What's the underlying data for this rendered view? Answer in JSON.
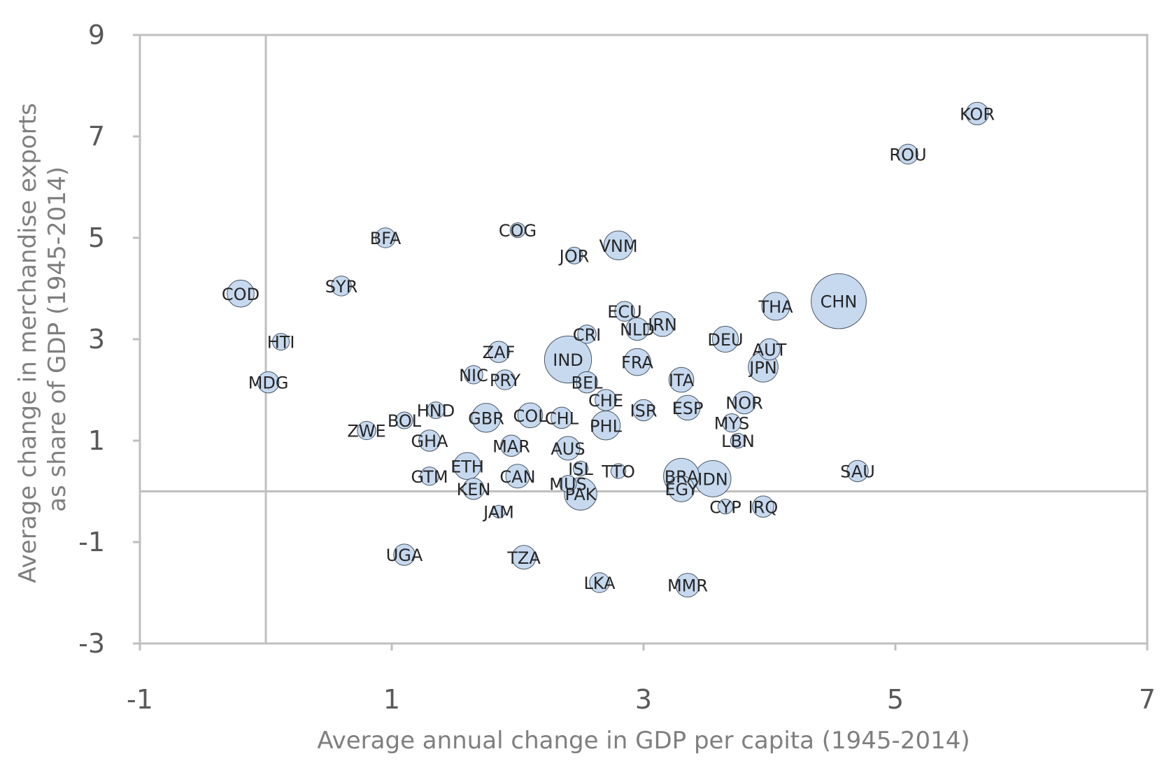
{
  "chart_data": {
    "type": "scatter",
    "bubble": true,
    "xlabel": "Average annual change in GDP per capita (1945-2014)",
    "ylabel_lines": [
      "Average change in merchandise exports",
      "as share of GDP (1945-2014)"
    ],
    "xlim": [
      -1,
      7
    ],
    "ylim": [
      -3,
      9
    ],
    "x_ticks": [
      "-1",
      "1",
      "3",
      "5",
      "7"
    ],
    "y_ticks": [
      "9",
      "7",
      "5",
      "3",
      "1",
      "-1",
      "-3"
    ],
    "grid": false,
    "reference_lines": {
      "x": 0,
      "y": 0
    },
    "marker_color": "#c6d9ef",
    "marker_edge": "#4a5866",
    "points": [
      {
        "label": "KOR",
        "x": 5.65,
        "y": 7.45,
        "size": 8
      },
      {
        "label": "ROU",
        "x": 5.1,
        "y": 6.65,
        "size": 6
      },
      {
        "label": "COG",
        "x": 2.0,
        "y": 5.15,
        "size": 3
      },
      {
        "label": "VNM",
        "x": 2.8,
        "y": 4.85,
        "size": 14
      },
      {
        "label": "BFA",
        "x": 0.95,
        "y": 5.0,
        "size": 6
      },
      {
        "label": "JOR",
        "x": 2.45,
        "y": 4.65,
        "size": 4
      },
      {
        "label": "SYR",
        "x": 0.6,
        "y": 4.05,
        "size": 6
      },
      {
        "label": "COD",
        "x": -0.2,
        "y": 3.9,
        "size": 12
      },
      {
        "label": "CHN",
        "x": 4.55,
        "y": 3.75,
        "size": 56
      },
      {
        "label": "THA",
        "x": 4.05,
        "y": 3.65,
        "size": 13
      },
      {
        "label": "ECU",
        "x": 2.85,
        "y": 3.55,
        "size": 6
      },
      {
        "label": "IRN",
        "x": 3.15,
        "y": 3.3,
        "size": 10
      },
      {
        "label": "NLD",
        "x": 2.95,
        "y": 3.2,
        "size": 8
      },
      {
        "label": "CRI",
        "x": 2.55,
        "y": 3.1,
        "size": 5
      },
      {
        "label": "DEU",
        "x": 3.65,
        "y": 3.0,
        "size": 11
      },
      {
        "label": "HTI",
        "x": 0.12,
        "y": 2.95,
        "size": 4
      },
      {
        "label": "AUT",
        "x": 4.0,
        "y": 2.8,
        "size": 7
      },
      {
        "label": "IND",
        "x": 2.4,
        "y": 2.6,
        "size": 40
      },
      {
        "label": "ZAF",
        "x": 1.85,
        "y": 2.75,
        "size": 7
      },
      {
        "label": "JPN",
        "x": 3.95,
        "y": 2.45,
        "size": 15
      },
      {
        "label": "FRA",
        "x": 2.95,
        "y": 2.55,
        "size": 12
      },
      {
        "label": "NIC",
        "x": 1.65,
        "y": 2.3,
        "size": 5
      },
      {
        "label": "MDG",
        "x": 0.02,
        "y": 2.15,
        "size": 7
      },
      {
        "label": "PRY",
        "x": 1.9,
        "y": 2.2,
        "size": 6
      },
      {
        "label": "BEL",
        "x": 2.55,
        "y": 2.15,
        "size": 7
      },
      {
        "label": "ITA",
        "x": 3.3,
        "y": 2.2,
        "size": 10
      },
      {
        "label": "HND",
        "x": 1.35,
        "y": 1.6,
        "size": 4
      },
      {
        "label": "CHE",
        "x": 2.7,
        "y": 1.8,
        "size": 7
      },
      {
        "label": "NOR",
        "x": 3.8,
        "y": 1.75,
        "size": 8
      },
      {
        "label": "ISR",
        "x": 3.0,
        "y": 1.6,
        "size": 7
      },
      {
        "label": "ESP",
        "x": 3.35,
        "y": 1.65,
        "size": 10
      },
      {
        "label": "BOL",
        "x": 1.1,
        "y": 1.4,
        "size": 4
      },
      {
        "label": "COL",
        "x": 2.1,
        "y": 1.5,
        "size": 10
      },
      {
        "label": "GBR",
        "x": 1.75,
        "y": 1.45,
        "size": 14
      },
      {
        "label": "CHL",
        "x": 2.35,
        "y": 1.45,
        "size": 7
      },
      {
        "label": "MYS",
        "x": 3.7,
        "y": 1.35,
        "size": 5
      },
      {
        "label": "PHL",
        "x": 2.7,
        "y": 1.3,
        "size": 14
      },
      {
        "label": "ZWE",
        "x": 0.8,
        "y": 1.2,
        "size": 5
      },
      {
        "label": "GHA",
        "x": 1.3,
        "y": 1.0,
        "size": 7
      },
      {
        "label": "LBN",
        "x": 3.75,
        "y": 1.0,
        "size": 3
      },
      {
        "label": "MAR",
        "x": 1.95,
        "y": 0.9,
        "size": 7
      },
      {
        "label": "AUS",
        "x": 2.4,
        "y": 0.85,
        "size": 9
      },
      {
        "label": "ETH",
        "x": 1.6,
        "y": 0.5,
        "size": 12
      },
      {
        "label": "ISL",
        "x": 2.5,
        "y": 0.45,
        "size": 3
      },
      {
        "label": "TTO",
        "x": 2.8,
        "y": 0.4,
        "size": 3
      },
      {
        "label": "SAU",
        "x": 4.7,
        "y": 0.4,
        "size": 7
      },
      {
        "label": "GTM",
        "x": 1.3,
        "y": 0.3,
        "size": 5
      },
      {
        "label": "BRA",
        "x": 3.3,
        "y": 0.3,
        "size": 22
      },
      {
        "label": "IDN",
        "x": 3.55,
        "y": 0.25,
        "size": 23
      },
      {
        "label": "CAN",
        "x": 2.0,
        "y": 0.3,
        "size": 9
      },
      {
        "label": "MUS",
        "x": 2.4,
        "y": 0.15,
        "size": 4
      },
      {
        "label": "KEN",
        "x": 1.65,
        "y": 0.05,
        "size": 7
      },
      {
        "label": "EGY",
        "x": 3.3,
        "y": 0.05,
        "size": 11
      },
      {
        "label": "PAK",
        "x": 2.5,
        "y": -0.05,
        "size": 18
      },
      {
        "label": "CYP",
        "x": 3.65,
        "y": -0.3,
        "size": 3
      },
      {
        "label": "IRQ",
        "x": 3.95,
        "y": -0.3,
        "size": 7
      },
      {
        "label": "JAM",
        "x": 1.85,
        "y": -0.4,
        "size": 2
      },
      {
        "label": "UGA",
        "x": 1.1,
        "y": -1.25,
        "size": 7
      },
      {
        "label": "TZA",
        "x": 2.05,
        "y": -1.3,
        "size": 9
      },
      {
        "label": "LKA",
        "x": 2.65,
        "y": -1.8,
        "size": 6
      },
      {
        "label": "MMR",
        "x": 3.35,
        "y": -1.85,
        "size": 9
      }
    ]
  }
}
